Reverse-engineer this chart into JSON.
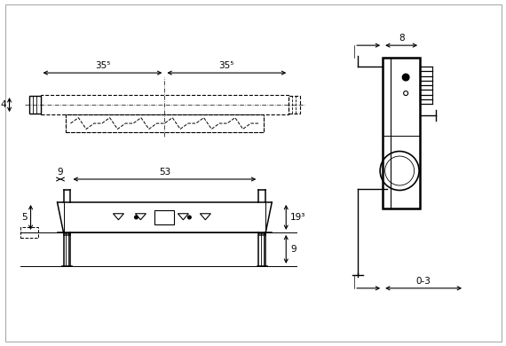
{
  "bg_color": "#ffffff",
  "lc": "#000000",
  "figsize": [
    5.7,
    3.9
  ],
  "dpi": 100,
  "labels": {
    "d355l": "35⁵",
    "d355r": "35⁵",
    "d4": "4",
    "d9": "9",
    "d53": "53",
    "d5": "5",
    "d193": "19³",
    "d9b": "9",
    "d8": "8",
    "d03": "0-3"
  }
}
